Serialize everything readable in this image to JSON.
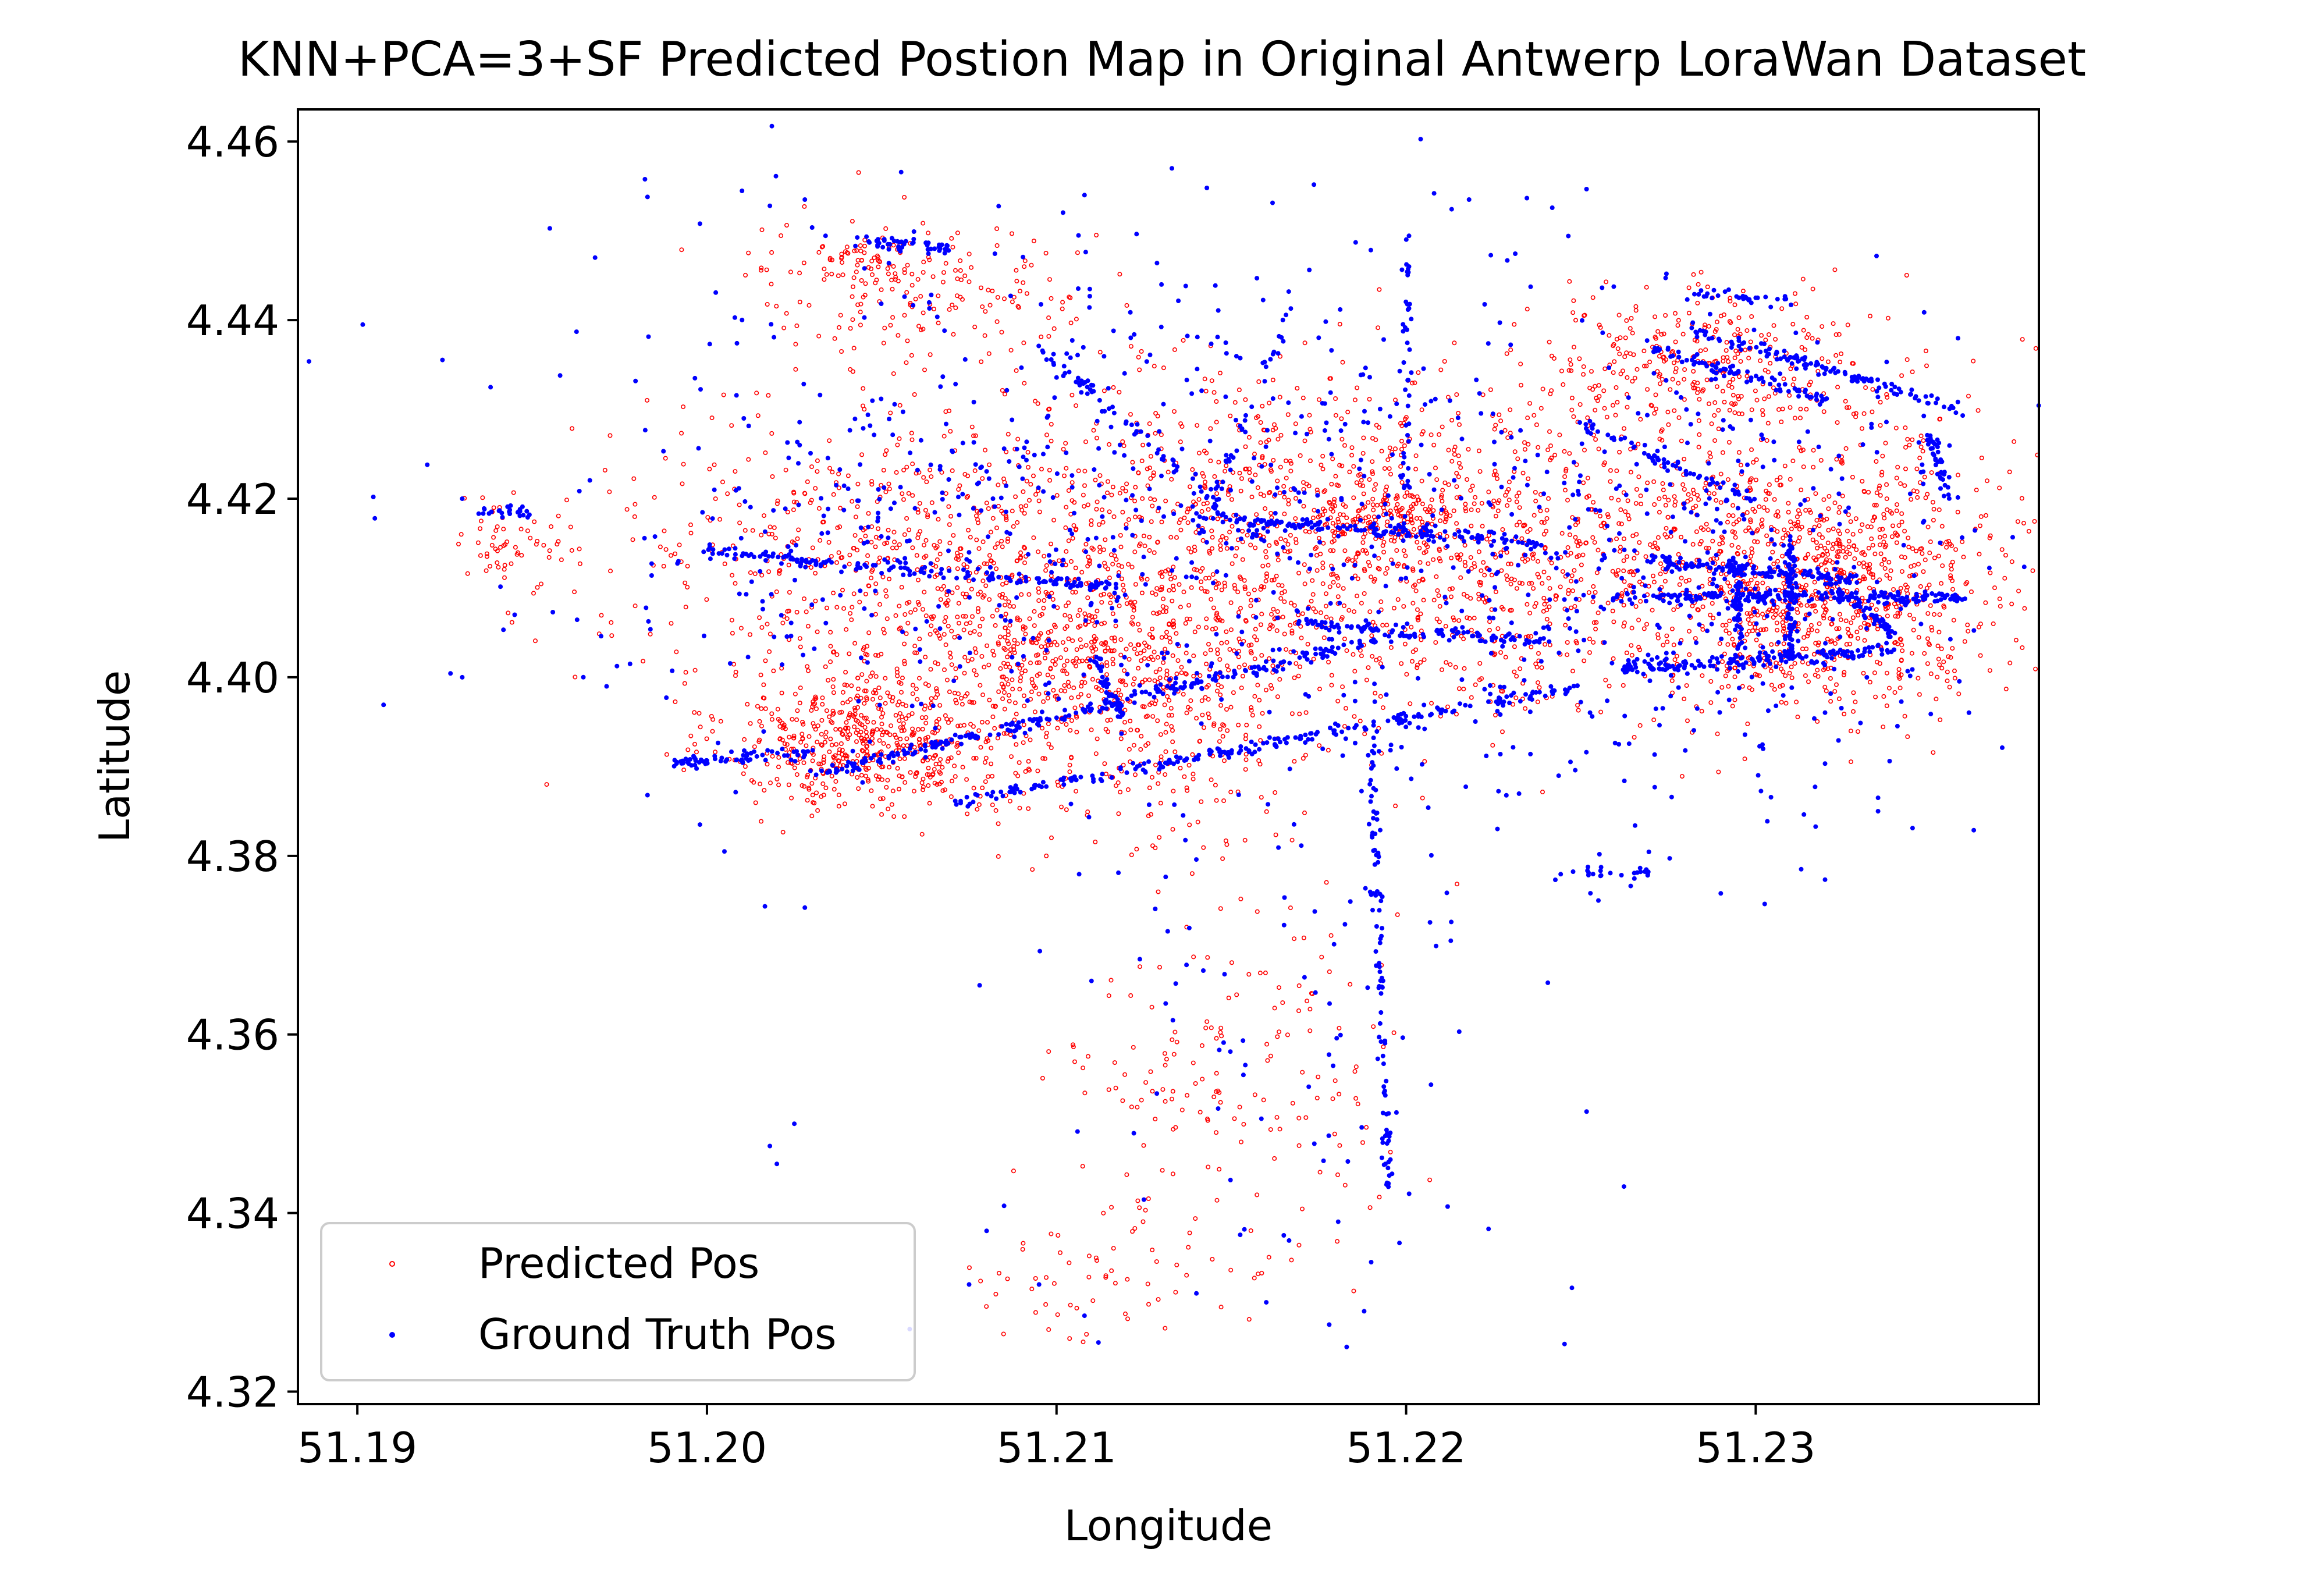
{
  "chart_data": {
    "type": "scatter",
    "title": "KNN+PCA=3+SF Predicted Postion Map in Original Antwerp LoraWan Dataset",
    "xlabel": "Longitude",
    "ylabel": "Latitude",
    "xlim": [
      51.1883,
      51.2381
    ],
    "ylim": [
      4.3186,
      4.4636
    ],
    "x_ticks": [
      51.19,
      51.2,
      51.21,
      51.22,
      51.23
    ],
    "x_tick_labels": [
      "51.19",
      "51.20",
      "51.21",
      "51.22",
      "51.23"
    ],
    "y_ticks": [
      4.32,
      4.34,
      4.36,
      4.38,
      4.4,
      4.42,
      4.44,
      4.46
    ],
    "y_tick_labels": [
      "4.32",
      "4.34",
      "4.36",
      "4.38",
      "4.40",
      "4.42",
      "4.44",
      "4.46"
    ],
    "grid": false,
    "legend_position": "lower-left",
    "series": [
      {
        "name": "Predicted Pos",
        "color": "#ff0000",
        "marker": "hollow-circle",
        "clusters": [
          {
            "cx": 51.2045,
            "cy": 4.393,
            "sx": 0.002,
            "sy": 0.004,
            "n": 520
          },
          {
            "cx": 51.21,
            "cy": 4.405,
            "sx": 0.004,
            "sy": 0.006,
            "n": 500
          },
          {
            "cx": 51.205,
            "cy": 4.416,
            "sx": 0.004,
            "sy": 0.007,
            "n": 380
          },
          {
            "cx": 51.215,
            "cy": 4.416,
            "sx": 0.005,
            "sy": 0.01,
            "n": 600
          },
          {
            "cx": 51.22,
            "cy": 4.414,
            "sx": 0.006,
            "sy": 0.009,
            "n": 650
          },
          {
            "cx": 51.228,
            "cy": 4.415,
            "sx": 0.005,
            "sy": 0.01,
            "n": 650
          },
          {
            "cx": 51.232,
            "cy": 4.41,
            "sx": 0.0025,
            "sy": 0.006,
            "n": 700
          },
          {
            "cx": 51.2285,
            "cy": 4.435,
            "sx": 0.0025,
            "sy": 0.004,
            "n": 300
          },
          {
            "cx": 51.206,
            "cy": 4.444,
            "sx": 0.0025,
            "sy": 0.004,
            "n": 180
          },
          {
            "cx": 51.2045,
            "cy": 4.447,
            "sx": 0.0008,
            "sy": 0.001,
            "n": 40
          },
          {
            "cx": 51.1945,
            "cy": 4.415,
            "sx": 0.0008,
            "sy": 0.003,
            "n": 60
          },
          {
            "cx": 51.212,
            "cy": 4.39,
            "sx": 0.003,
            "sy": 0.005,
            "n": 200
          },
          {
            "cx": 51.215,
            "cy": 4.355,
            "sx": 0.0025,
            "sy": 0.012,
            "n": 180
          },
          {
            "cx": 51.2115,
            "cy": 4.332,
            "sx": 0.002,
            "sy": 0.003,
            "n": 50
          },
          {
            "cx": 51.2195,
            "cy": 4.418,
            "sx": 0.001,
            "sy": 0.0015,
            "n": 120
          },
          {
            "cx": 51.2105,
            "cy": 4.401,
            "sx": 0.002,
            "sy": 0.003,
            "n": 150
          }
        ]
      },
      {
        "name": "Ground Truth Pos",
        "color": "#0000ff",
        "marker": "dot",
        "tracks": [
          {
            "x0": 51.2,
            "y0": 4.414,
            "x1": 51.212,
            "y1": 4.41,
            "n": 160
          },
          {
            "x0": 51.199,
            "y0": 4.3905,
            "x1": 51.203,
            "y1": 4.3915,
            "n": 70
          },
          {
            "x0": 51.203,
            "y0": 4.389,
            "x1": 51.22,
            "y1": 4.405,
            "n": 260
          },
          {
            "x0": 51.207,
            "y0": 4.386,
            "x1": 51.225,
            "y1": 4.399,
            "n": 220
          },
          {
            "x0": 51.214,
            "y0": 4.418,
            "x1": 51.224,
            "y1": 4.415,
            "n": 140
          },
          {
            "x0": 51.217,
            "y0": 4.406,
            "x1": 51.224,
            "y1": 4.404,
            "n": 100
          },
          {
            "x0": 51.226,
            "y0": 4.401,
            "x1": 51.234,
            "y1": 4.403,
            "n": 150
          },
          {
            "x0": 51.226,
            "y0": 4.409,
            "x1": 51.236,
            "y1": 4.409,
            "n": 200
          },
          {
            "x0": 51.227,
            "y0": 4.413,
            "x1": 51.233,
            "y1": 4.411,
            "n": 120
          },
          {
            "x0": 51.228,
            "y0": 4.439,
            "x1": 51.236,
            "y1": 4.43,
            "n": 120
          },
          {
            "x0": 51.227,
            "y0": 4.437,
            "x1": 51.232,
            "y1": 4.431,
            "n": 80
          },
          {
            "x0": 51.231,
            "y0": 4.402,
            "x1": 51.231,
            "y1": 4.415,
            "n": 90
          },
          {
            "x0": 51.2295,
            "y0": 4.403,
            "x1": 51.2295,
            "y1": 4.413,
            "n": 50
          },
          {
            "x0": 51.228,
            "y0": 4.443,
            "x1": 51.231,
            "y1": 4.442,
            "n": 30
          },
          {
            "x0": 51.204,
            "y0": 4.449,
            "x1": 51.207,
            "y1": 4.448,
            "n": 50
          },
          {
            "x0": 51.1935,
            "y0": 4.4185,
            "x1": 51.195,
            "y1": 4.4185,
            "n": 25
          },
          {
            "x0": 51.2095,
            "y0": 4.437,
            "x1": 51.216,
            "y1": 4.415,
            "n": 80
          },
          {
            "x0": 51.211,
            "y0": 4.402,
            "x1": 51.212,
            "y1": 4.395,
            "n": 40
          },
          {
            "x0": 51.219,
            "y0": 4.395,
            "x1": 51.2195,
            "y1": 4.342,
            "n": 100
          },
          {
            "x0": 51.214,
            "y0": 4.415,
            "x1": 51.217,
            "y1": 4.444,
            "n": 40
          },
          {
            "x0": 51.22,
            "y0": 4.418,
            "x1": 51.22,
            "y1": 4.45,
            "n": 40
          },
          {
            "x0": 51.225,
            "y0": 4.428,
            "x1": 51.23,
            "y1": 4.42,
            "n": 60
          },
          {
            "x0": 51.235,
            "y0": 4.427,
            "x1": 51.2355,
            "y1": 4.42,
            "n": 40
          },
          {
            "x0": 51.224,
            "y0": 4.378,
            "x1": 51.227,
            "y1": 4.378,
            "n": 25
          },
          {
            "x0": 51.232,
            "y0": 4.411,
            "x1": 51.234,
            "y1": 4.405,
            "n": 60
          }
        ],
        "scatter_clusters": [
          {
            "cx": 51.215,
            "cy": 4.415,
            "sx": 0.009,
            "sy": 0.016,
            "n": 650
          },
          {
            "cx": 51.229,
            "cy": 4.41,
            "sx": 0.004,
            "sy": 0.014,
            "n": 300
          },
          {
            "cx": 51.218,
            "cy": 4.36,
            "sx": 0.004,
            "sy": 0.016,
            "n": 80
          },
          {
            "cx": 51.206,
            "cy": 4.42,
            "sx": 0.005,
            "sy": 0.015,
            "n": 150
          }
        ],
        "points": [
          [
            51.1905,
            4.4178
          ],
          [
            51.192,
            4.4238
          ],
          [
            51.193,
            4.42
          ],
          [
            51.1958,
            4.4338
          ],
          [
            51.1968,
            4.447
          ],
          [
            51.1983,
            4.4538
          ],
          [
            51.1998,
            4.4508
          ],
          [
            51.2018,
            4.4528
          ],
          [
            51.2028,
            4.4535
          ],
          [
            51.193,
            4.4
          ],
          [
            51.1945,
            4.407
          ],
          [
            51.1978,
            4.4015
          ],
          [
            51.1983,
            4.3868
          ],
          [
            51.1998,
            4.3835
          ],
          [
            51.2005,
            4.3805
          ],
          [
            51.2028,
            4.3742
          ],
          [
            51.2018,
            4.3475
          ],
          [
            51.202,
            4.3455
          ],
          [
            51.2025,
            4.35
          ],
          [
            51.2058,
            4.327
          ],
          [
            51.2075,
            4.332
          ],
          [
            51.208,
            4.338
          ],
          [
            51.2085,
            4.3408
          ],
          [
            51.2095,
            4.332
          ],
          [
            51.2108,
            4.3285
          ],
          [
            51.2112,
            4.3255
          ],
          [
            51.2125,
            4.3415
          ],
          [
            51.214,
            4.331
          ],
          [
            51.216,
            4.33
          ],
          [
            51.2178,
            4.3275
          ],
          [
            51.2183,
            4.325
          ],
          [
            51.2165,
            4.3375
          ],
          [
            51.2078,
            4.3655
          ],
          [
            51.211,
            4.366
          ],
          [
            51.2255,
            4.375
          ],
          [
            51.229,
            4.3758
          ],
          [
            51.2335,
            4.385
          ],
          [
            51.2335,
            4.3865
          ],
          [
            51.2313,
            4.3785
          ],
          [
            51.2188,
            4.329
          ],
          [
            51.219,
            4.3345
          ],
          [
            51.2208,
            4.4542
          ],
          [
            51.2218,
            4.4535
          ],
          [
            51.2133,
            4.457
          ],
          [
            51.2143,
            4.4548
          ],
          [
            51.2108,
            4.454
          ]
        ]
      }
    ]
  }
}
